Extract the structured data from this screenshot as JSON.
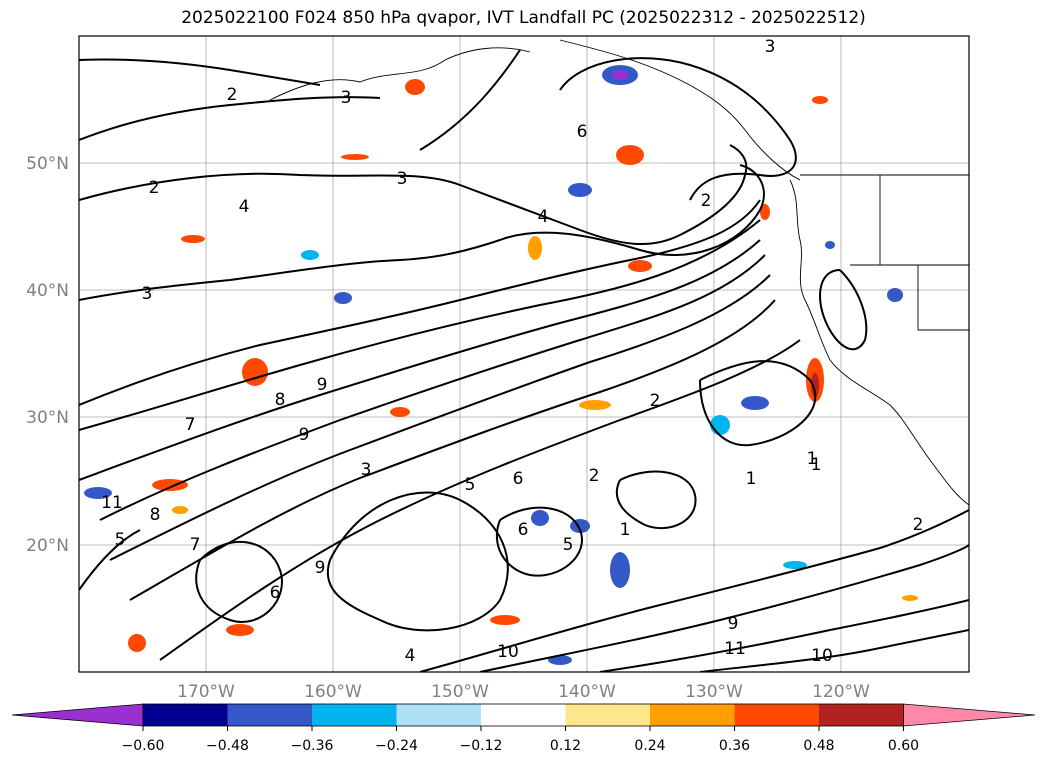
{
  "title": "2025022100 F024 850 hPa qvapor, IVT Landfall PC (2025022312 - 2025022512)",
  "map": {
    "lon_range": [
      -180,
      -110
    ],
    "lat_range": [
      10,
      60
    ],
    "lat_labels": [
      "20°N",
      "30°N",
      "40°N",
      "50°N"
    ],
    "lon_labels": [
      "170°W",
      "160°W",
      "150°W",
      "140°W",
      "130°W",
      "120°W"
    ],
    "gridlines": true,
    "tick_label_color": "#808080"
  },
  "contour_labels": [
    "2",
    "3",
    "2",
    "4",
    "3",
    "4",
    "3",
    "2",
    "1",
    "6",
    "9",
    "8",
    "7",
    "9",
    "3",
    "5",
    "6",
    "2",
    "1",
    "2",
    "1",
    "11",
    "8",
    "5",
    "7",
    "6",
    "9",
    "10",
    "11",
    "9",
    "10",
    "5",
    "4",
    "6",
    "3",
    "1",
    "2"
  ],
  "colorbar": {
    "ticks": [
      "−0.60",
      "−0.48",
      "−0.36",
      "−0.24",
      "−0.12",
      "0.12",
      "0.24",
      "0.36",
      "0.48",
      "0.60"
    ],
    "colors": [
      "#9b30d0",
      "#000090",
      "#3458c8",
      "#00b4f0",
      "#aee0f8",
      "#ffffff",
      "#ffe68c",
      "#ffa000",
      "#ff4800",
      "#b22222",
      "#ff88aa"
    ],
    "extend": "both"
  }
}
